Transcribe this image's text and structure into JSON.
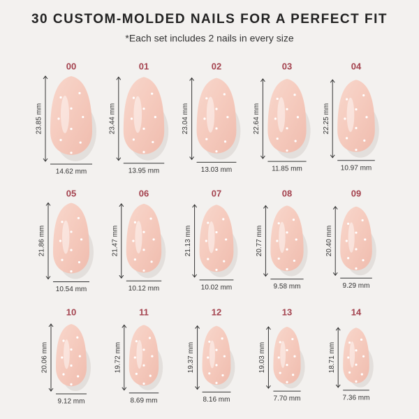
{
  "header": {
    "title": "30 CUSTOM-MOLDED NAILS FOR A PERFECT FIT",
    "subtitle": "*Each set includes 2 nails in every size"
  },
  "nails": [
    {
      "size": "00",
      "height": "23.85 mm",
      "width": "14.62 mm"
    },
    {
      "size": "01",
      "height": "23.44 mm",
      "width": "13.95 mm"
    },
    {
      "size": "02",
      "height": "23.04 mm",
      "width": "13.03 mm"
    },
    {
      "size": "03",
      "height": "22.64 mm",
      "width": "11.85 mm"
    },
    {
      "size": "04",
      "height": "22.25 mm",
      "width": "10.97 mm"
    },
    {
      "size": "05",
      "height": "21.86 mm",
      "width": "10.54 mm"
    },
    {
      "size": "06",
      "height": "21.47 mm",
      "width": "10.12 mm"
    },
    {
      "size": "07",
      "height": "21.13 mm",
      "width": "10.02 mm"
    },
    {
      "size": "08",
      "height": "20.77 mm",
      "width": "9.58 mm"
    },
    {
      "size": "09",
      "height": "20.40 mm",
      "width": "9.29 mm"
    },
    {
      "size": "10",
      "height": "20.06 mm",
      "width": "9.12 mm"
    },
    {
      "size": "11",
      "height": "19.72 mm",
      "width": "8.69 mm"
    },
    {
      "size": "12",
      "height": "19.37 mm",
      "width": "8.16 mm"
    },
    {
      "size": "13",
      "height": "19.03 mm",
      "width": "7.70 mm"
    },
    {
      "size": "14",
      "height": "18.71 mm",
      "width": "7.36 mm"
    }
  ]
}
